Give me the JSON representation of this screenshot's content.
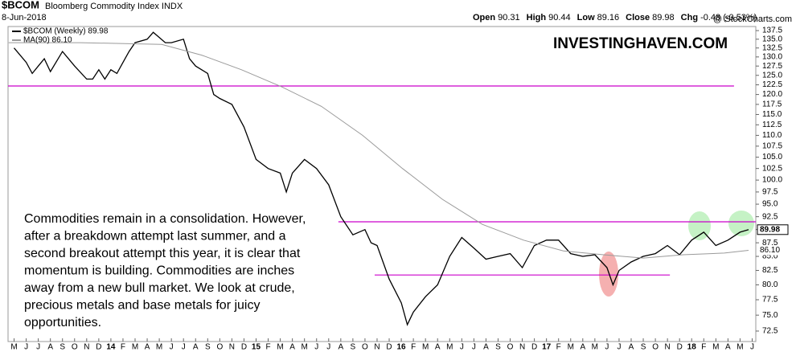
{
  "chart_data": {
    "type": "line",
    "symbol": "$BCOM",
    "title": "Bloomberg Commodity Index INDX",
    "date": "8-Jun-2018",
    "ohlc_header": [
      {
        "label": "Open",
        "value": "90.31"
      },
      {
        "label": "High",
        "value": "90.44"
      },
      {
        "label": "Low",
        "value": "89.16"
      },
      {
        "label": "Close",
        "value": "89.98"
      },
      {
        "label": "Chg",
        "value": "-0.48 (-0.53%)"
      }
    ],
    "source": "@ StockCharts.com",
    "watermark": "INVESTINGHAVEN.COM",
    "annotation_lines": [
      "Commodities remain in a consolidation. However,",
      "after a breakdown attempt last summer, and a",
      "second breakout attempt this year, it is clear that",
      "momentum is building. Commodities are inches",
      "away from a new bull market. We look at crude,",
      "precious metals and base metals for juicy",
      "opportunities."
    ],
    "series": [
      {
        "name": "$BCOM (Weekly) 89.98",
        "color": "#000000",
        "x": [
          0,
          1,
          1.5,
          2,
          2.5,
          3,
          4,
          4.5,
          5,
          6,
          6.5,
          7,
          7.5,
          8,
          8.5,
          9,
          9.5,
          10,
          11,
          11.5,
          12,
          12.5,
          13,
          14,
          14.5,
          15,
          16,
          16.5,
          17,
          18,
          19,
          20,
          21,
          22,
          22.5,
          23,
          24,
          25,
          26,
          27,
          28,
          29,
          29.5,
          30,
          31,
          32,
          32.5,
          33,
          34,
          35,
          36,
          37,
          38,
          39,
          40,
          41,
          42,
          43,
          44,
          45,
          46,
          47,
          48,
          49,
          49.5,
          50,
          51,
          52,
          53,
          54,
          55,
          56,
          57,
          58,
          59,
          60,
          60.7
        ],
        "values": [
          132.5,
          128.5,
          125.5,
          127.5,
          129.5,
          126,
          131.5,
          129.5,
          127.5,
          124,
          124,
          126.5,
          124,
          126.5,
          125.5,
          128.5,
          131.5,
          134,
          135,
          137,
          135.5,
          134,
          134,
          135,
          129.5,
          127.5,
          125.5,
          120,
          119,
          117.5,
          112,
          104.5,
          102.5,
          101.5,
          97.5,
          101.5,
          104.5,
          102.5,
          99,
          92.5,
          89,
          90,
          87.5,
          87,
          81,
          77,
          73.5,
          75.5,
          78,
          80,
          85,
          88.5,
          86.5,
          84.5,
          85,
          85.5,
          83,
          87,
          88,
          88,
          85.5,
          85,
          85.3,
          83,
          80,
          82.5,
          84,
          85,
          85.5,
          87,
          85.3,
          88,
          89.5,
          87,
          88,
          89.5,
          89.98
        ]
      },
      {
        "name": "MA(90) 86.10",
        "color": "#9a9a9a",
        "x": [
          -0.45,
          5.5,
          12.2,
          15.5,
          18.8,
          22.1,
          25.4,
          28.8,
          32.1,
          35.4,
          38.7,
          42.1,
          45.4,
          48.7,
          52,
          55.3,
          58.7,
          60.7
        ],
        "values": [
          134,
          134,
          133.5,
          130.5,
          126.5,
          122,
          117,
          110,
          102.5,
          96,
          91,
          88,
          86,
          85.3,
          84.7,
          85.3,
          85.6,
          86.1
        ]
      }
    ],
    "price_tags": [
      "89.98",
      "86.10"
    ],
    "levels": [
      {
        "value": 122.2,
        "x": [
          -0.5,
          59.5
        ]
      },
      {
        "value": 91.5,
        "x": [
          26.8,
          61.3
        ]
      },
      {
        "value": 81.7,
        "x": [
          29.8,
          54.2
        ]
      }
    ],
    "level_color": "#cc00cc",
    "log_scale": true,
    "ylim": [
      70.9,
      138.7
    ],
    "yticks": [
      137.5,
      {
        "value": 135,
        "label": "135.0"
      },
      132.5,
      {
        "value": 130,
        "label": "130.0"
      },
      127.5,
      {
        "value": 125,
        "label": "125.0"
      },
      122.5,
      {
        "value": 120,
        "label": "120.0"
      },
      117.5,
      {
        "value": 115,
        "label": "115.0"
      },
      112.5,
      {
        "value": 110,
        "label": "110.0"
      },
      107.5,
      {
        "value": 105,
        "label": "105.0"
      },
      102.5,
      {
        "value": 100,
        "label": "100.0"
      },
      97.5,
      {
        "value": 95,
        "label": "95.0"
      },
      92.5,
      {
        "value": 90,
        "label": "90.0"
      },
      87.5,
      {
        "value": 85,
        "label": "85.0"
      },
      82.5,
      {
        "value": 80,
        "label": "80.0"
      },
      77.5,
      {
        "value": 75,
        "label": "75.0"
      },
      72.5
    ],
    "xlim": [
      -0.5,
      61.3
    ],
    "xticks": [
      {
        "value": 0,
        "label": "M"
      },
      {
        "value": 1,
        "label": "J"
      },
      {
        "value": 2,
        "label": "J"
      },
      {
        "value": 3,
        "label": "A"
      },
      {
        "value": 4,
        "label": "S"
      },
      {
        "value": 5,
        "label": "O"
      },
      {
        "value": 6,
        "label": "N"
      },
      {
        "value": 7,
        "label": "D"
      },
      {
        "value": 8,
        "label": "14"
      },
      {
        "value": 9,
        "label": "F"
      },
      {
        "value": 10,
        "label": "M"
      },
      {
        "value": 11,
        "label": "A"
      },
      {
        "value": 12,
        "label": "M"
      },
      {
        "value": 13,
        "label": "J"
      },
      {
        "value": 14,
        "label": "J"
      },
      {
        "value": 15,
        "label": "A"
      },
      {
        "value": 16,
        "label": "S"
      },
      {
        "value": 17,
        "label": "O"
      },
      {
        "value": 18,
        "label": "N"
      },
      {
        "value": 19,
        "label": "D"
      },
      {
        "value": 20,
        "label": "15"
      },
      {
        "value": 21,
        "label": "F"
      },
      {
        "value": 22,
        "label": "M"
      },
      {
        "value": 23,
        "label": "A"
      },
      {
        "value": 24,
        "label": "M"
      },
      {
        "value": 25,
        "label": "J"
      },
      {
        "value": 26,
        "label": "J"
      },
      {
        "value": 27,
        "label": "A"
      },
      {
        "value": 28,
        "label": "S"
      },
      {
        "value": 29,
        "label": "O"
      },
      {
        "value": 30,
        "label": "N"
      },
      {
        "value": 31,
        "label": "D"
      },
      {
        "value": 32,
        "label": "16"
      },
      {
        "value": 33,
        "label": "F"
      },
      {
        "value": 34,
        "label": "M"
      },
      {
        "value": 35,
        "label": "A"
      },
      {
        "value": 36,
        "label": "M"
      },
      {
        "value": 37,
        "label": "J"
      },
      {
        "value": 38,
        "label": "J"
      },
      {
        "value": 39,
        "label": "A"
      },
      {
        "value": 40,
        "label": "S"
      },
      {
        "value": 41,
        "label": "O"
      },
      {
        "value": 42,
        "label": "N"
      },
      {
        "value": 43,
        "label": "D"
      },
      {
        "value": 44,
        "label": "17"
      },
      {
        "value": 45,
        "label": "F"
      },
      {
        "value": 46,
        "label": "M"
      },
      {
        "value": 47,
        "label": "A"
      },
      {
        "value": 48,
        "label": "M"
      },
      {
        "value": 49,
        "label": "J"
      },
      {
        "value": 50,
        "label": "J"
      },
      {
        "value": 51,
        "label": "A"
      },
      {
        "value": 52,
        "label": "S"
      },
      {
        "value": 53,
        "label": "O"
      },
      {
        "value": 54,
        "label": "N"
      },
      {
        "value": 55,
        "label": "D"
      },
      {
        "value": 56,
        "label": "18"
      },
      {
        "value": 57,
        "label": "F"
      },
      {
        "value": 58,
        "label": "M"
      },
      {
        "value": 59,
        "label": "A"
      },
      {
        "value": 60,
        "label": "M"
      },
      {
        "value": 61,
        "label": "J"
      }
    ],
    "grid": false
  }
}
